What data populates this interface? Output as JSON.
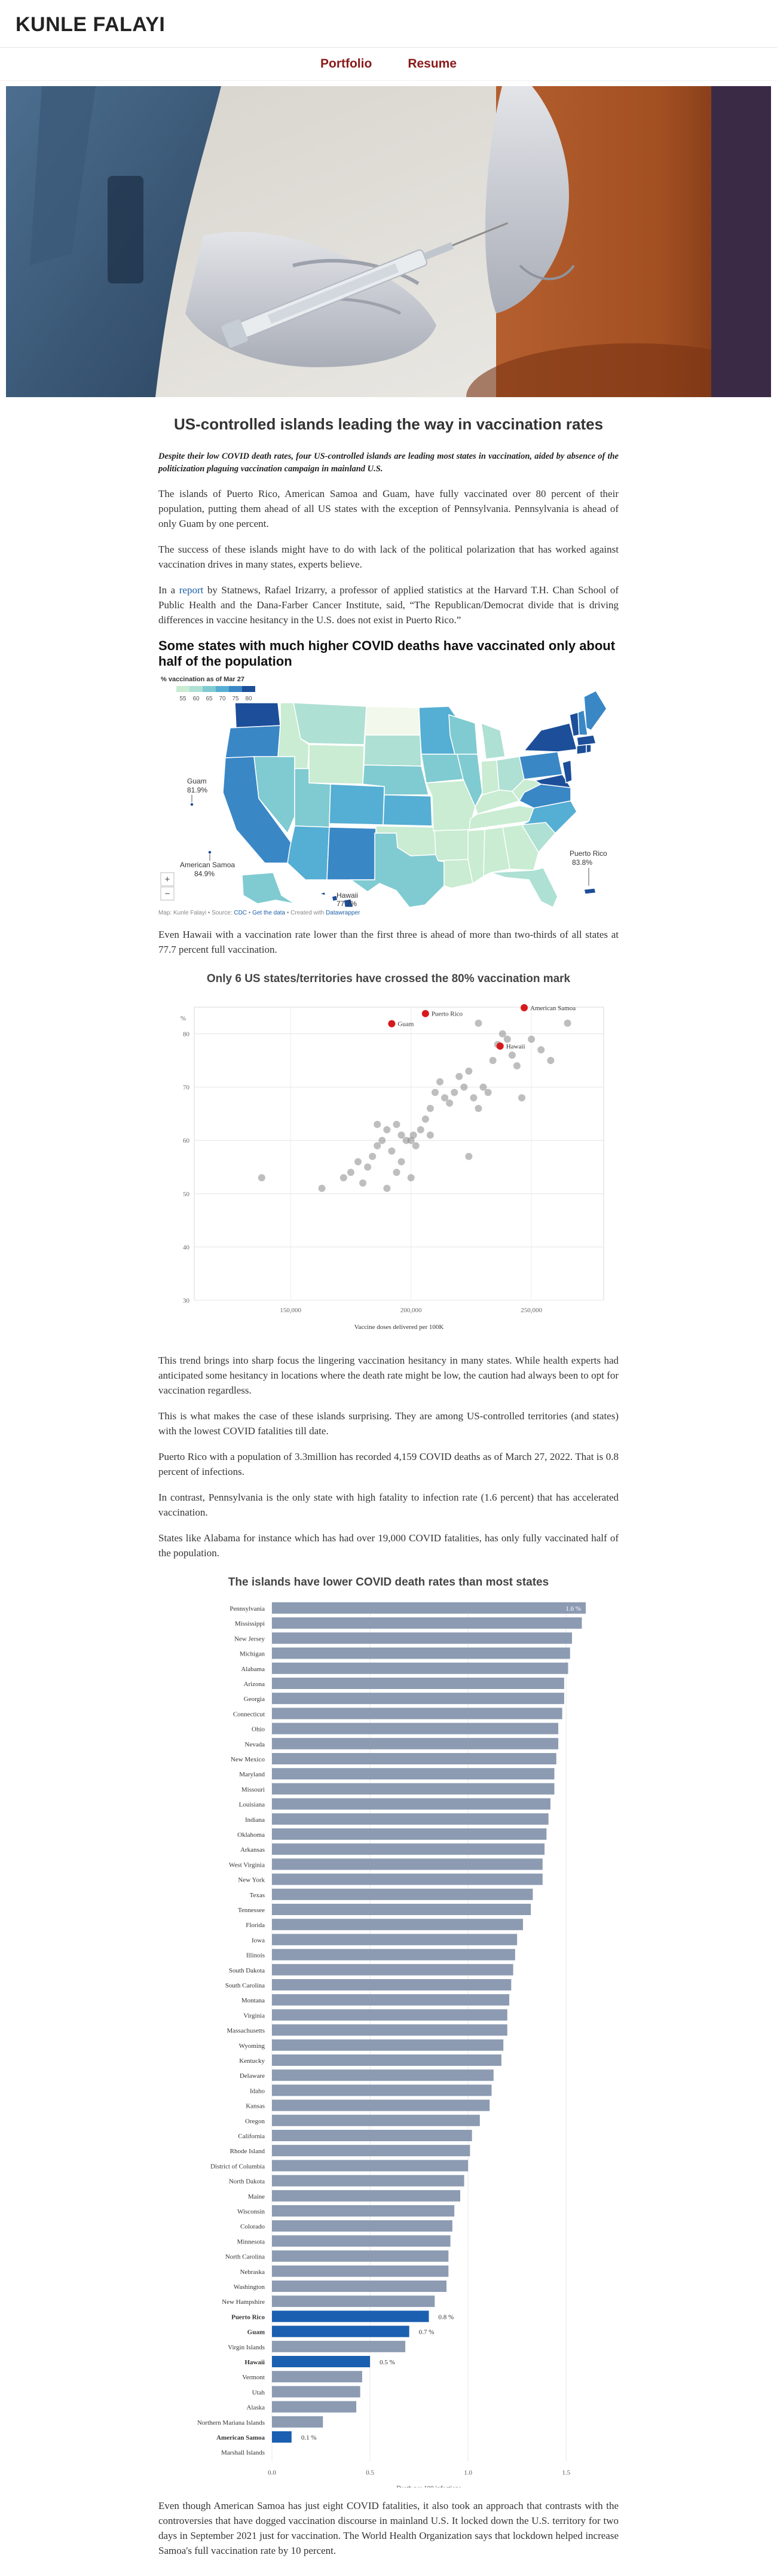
{
  "site": {
    "brand": "KUNLE FALAYI",
    "nav": [
      "Portfolio",
      "Resume"
    ]
  },
  "article": {
    "title": "US-controlled islands leading the way in vaccination rates",
    "dek": "Despite their low COVID death rates, four US-controlled islands are leading most states in vaccination, aided by absence of the politicization plaguing vaccination campaign in mainland U.S.",
    "p1": "The islands of Puerto Rico, American Samoa and Guam, have fully vaccinated over 80 percent of their population, putting them ahead of all US states with the exception of Pennsylvania. Pennsylvania is ahead of only Guam by one percent.",
    "p2": "The success of these islands might have to do with lack of the political polarization that has worked against vaccination drives in many states, experts believe.",
    "p3_pre": "In a ",
    "p3_link": "report",
    "p3_post": " by Statnews, Rafael Irizarry, a professor of applied statistics at the Harvard T.H. Chan School of Public Health and the Dana-Farber Cancer Institute, said, “The Republican/Democrat divide that is driving differences in vaccine hesitancy in the U.S. does not exist in Puerto Rico.”",
    "p4": "Even Hawaii with a vaccination rate lower than the first three is ahead of more than two-thirds of all states at 77.7 percent full vaccination.",
    "p5": "This trend brings into sharp focus the lingering vaccination hesitancy in many states. While health experts had anticipated some hesitancy in locations where the death rate might be low, the caution had always been to opt for vaccination regardless.",
    "p6": "This is what makes the case of these islands surprising. They are among US-controlled territories (and states) with the lowest COVID fatalities till date.",
    "p7": "Puerto Rico with a population of 3.3million has recorded 4,159 COVID deaths as of March 27, 2022. That is 0.8 percent of infections.",
    "p8": "In contrast, Pennsylvania is the only state with high fatality to infection rate (1.6 percent) that has accelerated vaccination.",
    "p9": "States like Alabama for instance which has had over 19,000 COVID fatalities, has only fully vaccinated half of the population.",
    "p10": "Even though American Samoa has just eight COVID fatalities, it also took an approach that contrasts with the controversies that have dogged vaccination discourse in mainland U.S. It locked down the U.S. territory for two days in September 2021 just for vaccination. The World Health Organization says that lockdown helped increase Samoa's full vaccination rate by 10 percent."
  },
  "map": {
    "heading": "Some states with much higher COVID deaths have vaccinated only about half of the population",
    "legend_title": "% vaccination as of Mar 27",
    "legend_ticks": [
      "55",
      "60",
      "65",
      "70",
      "75",
      "80"
    ],
    "legend_colors": [
      "#c9ecd2",
      "#aee0d4",
      "#7fcbd1",
      "#55aed3",
      "#3a87c6",
      "#1c4e99"
    ],
    "callouts": {
      "guam": "Guam",
      "guam_val": "81.9%",
      "samoa": "American Samoa",
      "samoa_val": "84.9%",
      "hawaii": "Hawaii",
      "hawaii_val": "77.7%",
      "pr": "Puerto Rico",
      "pr_val": "83.8%"
    },
    "zoom_in": "+",
    "zoom_out": "−",
    "credit_pre": "Map: Kunle Falayi • Source: ",
    "credit_src": "CDC",
    "credit_sep": " • ",
    "credit_get": "Get the data",
    "credit_mid": " • Created with ",
    "credit_tool": "Datawrapper"
  },
  "chart_data": [
    {
      "type": "scatter",
      "title": "Only 6 US states/territories have crossed the 80% vaccination mark",
      "xlabel": "Vaccine doses delivered per 100K",
      "ylabel": "%",
      "xlim": [
        110000,
        280000
      ],
      "ylim": [
        30,
        85
      ],
      "xticks": [
        150000,
        200000,
        250000
      ],
      "xtick_labels": [
        "150,000",
        "200,000",
        "250,000"
      ],
      "yticks": [
        30,
        40,
        50,
        60,
        70,
        80
      ],
      "labeled_points": [
        {
          "name": "Puerto Rico",
          "x": 206000,
          "y": 83.8
        },
        {
          "name": "American Samoa",
          "x": 247000,
          "y": 84.9
        },
        {
          "name": "Guam",
          "x": 192000,
          "y": 81.9
        },
        {
          "name": "Hawaii",
          "x": 237000,
          "y": 77.7
        }
      ],
      "points": [
        [
          138000,
          53
        ],
        [
          163000,
          51
        ],
        [
          172000,
          53
        ],
        [
          175000,
          54
        ],
        [
          178000,
          56
        ],
        [
          180000,
          52
        ],
        [
          182000,
          55
        ],
        [
          184000,
          57
        ],
        [
          186000,
          59
        ],
        [
          188000,
          60
        ],
        [
          190000,
          62
        ],
        [
          192000,
          58
        ],
        [
          194000,
          63
        ],
        [
          196000,
          61
        ],
        [
          198000,
          60
        ],
        [
          200000,
          60
        ],
        [
          201000,
          61
        ],
        [
          202000,
          59
        ],
        [
          204000,
          62
        ],
        [
          206000,
          64
        ],
        [
          208000,
          66
        ],
        [
          210000,
          69
        ],
        [
          212000,
          71
        ],
        [
          214000,
          68
        ],
        [
          216000,
          67
        ],
        [
          218000,
          69
        ],
        [
          220000,
          72
        ],
        [
          222000,
          70
        ],
        [
          224000,
          73
        ],
        [
          226000,
          68
        ],
        [
          228000,
          66
        ],
        [
          230000,
          70
        ],
        [
          232000,
          69
        ],
        [
          234000,
          75
        ],
        [
          236000,
          78
        ],
        [
          238000,
          80
        ],
        [
          240000,
          79
        ],
        [
          242000,
          76
        ],
        [
          244000,
          74
        ],
        [
          246000,
          68
        ],
        [
          250000,
          79
        ],
        [
          254000,
          77
        ],
        [
          258000,
          75
        ],
        [
          265000,
          82
        ],
        [
          190000,
          51
        ],
        [
          194000,
          54
        ],
        [
          186000,
          63
        ],
        [
          224000,
          57
        ],
        [
          196000,
          56
        ],
        [
          200000,
          53
        ],
        [
          208000,
          61
        ],
        [
          228000,
          82
        ]
      ]
    },
    {
      "type": "bar",
      "orientation": "horizontal",
      "title": "The islands have lower COVID death rates than most states",
      "xlabel": "Death per 100 infections",
      "xlim": [
        0,
        1.6
      ],
      "xticks": [
        0,
        0.5,
        1,
        1.5
      ],
      "xtick_labels": [
        "0.0",
        "0.5",
        "1.0",
        "1.5"
      ],
      "default_color": "#8c9bb2",
      "highlight_color": "#1b5fb0",
      "bars": [
        {
          "name": "Pennsylvania",
          "value": 1.6,
          "label": "1.6 %"
        },
        {
          "name": "Mississippi",
          "value": 1.58
        },
        {
          "name": "New Jersey",
          "value": 1.53
        },
        {
          "name": "Michigan",
          "value": 1.52
        },
        {
          "name": "Alabama",
          "value": 1.51
        },
        {
          "name": "Arizona",
          "value": 1.49
        },
        {
          "name": "Georgia",
          "value": 1.49
        },
        {
          "name": "Connecticut",
          "value": 1.48
        },
        {
          "name": "Ohio",
          "value": 1.46
        },
        {
          "name": "Nevada",
          "value": 1.46
        },
        {
          "name": "New Mexico",
          "value": 1.45
        },
        {
          "name": "Maryland",
          "value": 1.44
        },
        {
          "name": "Missouri",
          "value": 1.44
        },
        {
          "name": "Louisiana",
          "value": 1.42
        },
        {
          "name": "Indiana",
          "value": 1.41
        },
        {
          "name": "Oklahoma",
          "value": 1.4
        },
        {
          "name": "Arkansas",
          "value": 1.39
        },
        {
          "name": "West Virginia",
          "value": 1.38
        },
        {
          "name": "New York",
          "value": 1.38
        },
        {
          "name": "Texas",
          "value": 1.33
        },
        {
          "name": "Tennessee",
          "value": 1.32
        },
        {
          "name": "Florida",
          "value": 1.28
        },
        {
          "name": "Iowa",
          "value": 1.25
        },
        {
          "name": "Illinois",
          "value": 1.24
        },
        {
          "name": "South Dakota",
          "value": 1.23
        },
        {
          "name": "South Carolina",
          "value": 1.22
        },
        {
          "name": "Montana",
          "value": 1.21
        },
        {
          "name": "Virginia",
          "value": 1.2
        },
        {
          "name": "Massachusetts",
          "value": 1.2
        },
        {
          "name": "Wyoming",
          "value": 1.18
        },
        {
          "name": "Kentucky",
          "value": 1.17
        },
        {
          "name": "Delaware",
          "value": 1.13
        },
        {
          "name": "Idaho",
          "value": 1.12
        },
        {
          "name": "Kansas",
          "value": 1.11
        },
        {
          "name": "Oregon",
          "value": 1.06
        },
        {
          "name": "California",
          "value": 1.02
        },
        {
          "name": "Rhode Island",
          "value": 1.01
        },
        {
          "name": "District of Columbia",
          "value": 1.0
        },
        {
          "name": "North Dakota",
          "value": 0.98
        },
        {
          "name": "Maine",
          "value": 0.96
        },
        {
          "name": "Wisconsin",
          "value": 0.93
        },
        {
          "name": "Colorado",
          "value": 0.92
        },
        {
          "name": "Minnesota",
          "value": 0.91
        },
        {
          "name": "North Carolina",
          "value": 0.9
        },
        {
          "name": "Nebraska",
          "value": 0.9
        },
        {
          "name": "Washington",
          "value": 0.89
        },
        {
          "name": "New Hampshire",
          "value": 0.83
        },
        {
          "name": "Puerto Rico",
          "value": 0.8,
          "label": "0.8 %",
          "highlight": true
        },
        {
          "name": "Guam",
          "value": 0.7,
          "label": "0.7 %",
          "highlight": true
        },
        {
          "name": "Virgin Islands",
          "value": 0.68
        },
        {
          "name": "Hawaii",
          "value": 0.5,
          "label": "0.5 %",
          "highlight": true
        },
        {
          "name": "Vermont",
          "value": 0.46
        },
        {
          "name": "Utah",
          "value": 0.45
        },
        {
          "name": "Alaska",
          "value": 0.43
        },
        {
          "name": "Northern Mariana Islands",
          "value": 0.26
        },
        {
          "name": "American Samoa",
          "value": 0.1,
          "label": "0.1 %",
          "highlight": true
        },
        {
          "name": "Marshall Islands",
          "value": 0.0
        }
      ]
    }
  ]
}
